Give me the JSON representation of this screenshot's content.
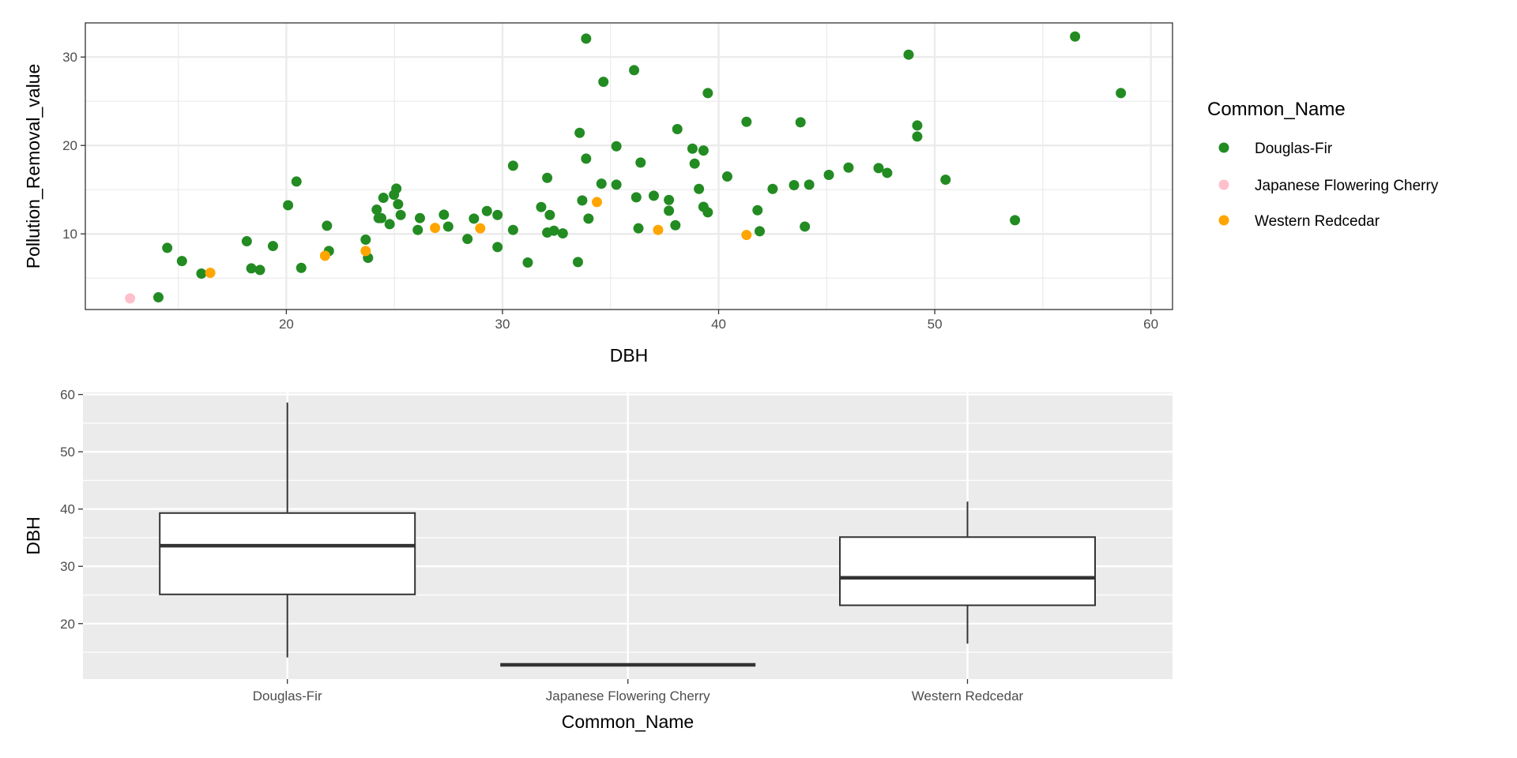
{
  "chart_data": [
    {
      "type": "scatter",
      "title": "",
      "xlabel": "DBH",
      "ylabel": "Pollution_Removal_value",
      "xlim": [
        10.7,
        61.0
      ],
      "ylim": [
        1.45,
        33.86
      ],
      "xticks": [
        20,
        30,
        40,
        50,
        60
      ],
      "yticks": [
        10,
        20,
        30
      ],
      "grid": true,
      "legend": {
        "title": "Common_Name",
        "placement": "right"
      },
      "series": [
        {
          "name": "Douglas-Fir",
          "color": "#228B22",
          "points": [
            [
              14.08,
              2.83
            ],
            [
              14.49,
              8.42
            ],
            [
              15.17,
              6.93
            ],
            [
              16.07,
              5.51
            ],
            [
              18.17,
              9.17
            ],
            [
              18.38,
              6.1
            ],
            [
              18.78,
              5.92
            ],
            [
              19.38,
              8.63
            ],
            [
              20.08,
              13.24
            ],
            [
              20.47,
              15.92
            ],
            [
              20.69,
              6.16
            ],
            [
              21.88,
              10.92
            ],
            [
              21.97,
              8.07
            ],
            [
              23.67,
              9.35
            ],
            [
              23.78,
              7.29
            ],
            [
              24.18,
              12.74
            ],
            [
              24.27,
              11.79
            ],
            [
              24.39,
              11.79
            ],
            [
              24.49,
              14.08
            ],
            [
              24.78,
              11.1
            ],
            [
              24.98,
              14.43
            ],
            [
              25.09,
              15.12
            ],
            [
              25.17,
              13.36
            ],
            [
              25.29,
              12.14
            ],
            [
              26.08,
              10.45
            ],
            [
              26.18,
              11.79
            ],
            [
              27.29,
              12.17
            ],
            [
              27.49,
              10.83
            ],
            [
              28.38,
              9.43
            ],
            [
              28.68,
              11.73
            ],
            [
              29.28,
              12.59
            ],
            [
              29.77,
              12.14
            ],
            [
              29.77,
              8.51
            ],
            [
              30.49,
              17.71
            ],
            [
              30.49,
              10.45
            ],
            [
              31.17,
              6.76
            ],
            [
              31.79,
              13.04
            ],
            [
              32.07,
              16.34
            ],
            [
              32.19,
              12.14
            ],
            [
              32.07,
              10.15
            ],
            [
              32.38,
              10.36
            ],
            [
              32.79,
              10.06
            ],
            [
              33.49,
              6.82
            ],
            [
              33.57,
              21.43
            ],
            [
              33.69,
              13.78
            ],
            [
              33.87,
              32.08
            ],
            [
              33.87,
              18.51
            ],
            [
              33.98,
              11.73
            ],
            [
              34.58,
              15.68
            ],
            [
              34.67,
              27.2
            ],
            [
              35.27,
              19.91
            ],
            [
              35.27,
              15.57
            ],
            [
              36.09,
              28.51
            ],
            [
              36.39,
              18.07
            ],
            [
              36.19,
              14.14
            ],
            [
              36.29,
              10.63
            ],
            [
              37.0,
              14.32
            ],
            [
              37.7,
              13.84
            ],
            [
              37.7,
              12.62
            ],
            [
              38.0,
              10.98
            ],
            [
              38.09,
              21.85
            ],
            [
              38.79,
              19.64
            ],
            [
              38.89,
              17.95
            ],
            [
              39.09,
              15.09
            ],
            [
              39.3,
              19.43
            ],
            [
              39.3,
              13.06
            ],
            [
              39.5,
              25.92
            ],
            [
              39.5,
              12.44
            ],
            [
              40.4,
              16.49
            ],
            [
              41.29,
              22.68
            ],
            [
              41.8,
              12.68
            ],
            [
              41.9,
              10.3
            ],
            [
              42.5,
              15.09
            ],
            [
              43.49,
              15.51
            ],
            [
              43.79,
              22.62
            ],
            [
              43.99,
              10.83
            ],
            [
              44.19,
              15.57
            ],
            [
              45.1,
              16.67
            ],
            [
              46.01,
              17.5
            ],
            [
              47.4,
              17.44
            ],
            [
              47.8,
              16.9
            ],
            [
              48.79,
              30.27
            ],
            [
              49.19,
              22.26
            ],
            [
              49.19,
              21.01
            ],
            [
              50.5,
              16.13
            ],
            [
              53.71,
              11.55
            ],
            [
              56.49,
              32.32
            ],
            [
              58.61,
              25.92
            ]
          ]
        },
        {
          "name": "Japanese Flowering Cherry",
          "color": "#FFC0CB",
          "points": [
            [
              12.77,
              2.71
            ]
          ]
        },
        {
          "name": "Western Redcedar",
          "color": "#FFA500",
          "points": [
            [
              16.48,
              5.6
            ],
            [
              21.79,
              7.53
            ],
            [
              23.67,
              8.07
            ],
            [
              26.88,
              10.68
            ],
            [
              28.97,
              10.63
            ],
            [
              34.37,
              13.6
            ],
            [
              37.2,
              10.45
            ],
            [
              41.29,
              9.88
            ]
          ]
        }
      ]
    },
    {
      "type": "box",
      "title": "",
      "xlabel": "Common_Name",
      "ylabel": "DBH",
      "ylim": [
        10.32,
        60.36
      ],
      "yticks": [
        20,
        30,
        40,
        50,
        60
      ],
      "grid": true,
      "categories": [
        "Douglas-Fir",
        "Japanese Flowering Cherry",
        "Western Redcedar"
      ],
      "boxes": [
        {
          "min": 14.1,
          "q1": 25.1,
          "median": 33.6,
          "q3": 39.3,
          "max": 58.6
        },
        {
          "min": 12.8,
          "q1": 12.8,
          "median": 12.8,
          "q3": 12.8,
          "max": 12.8
        },
        {
          "min": 16.5,
          "q1": 23.2,
          "median": 28.0,
          "q3": 35.1,
          "max": 41.3
        }
      ]
    }
  ]
}
